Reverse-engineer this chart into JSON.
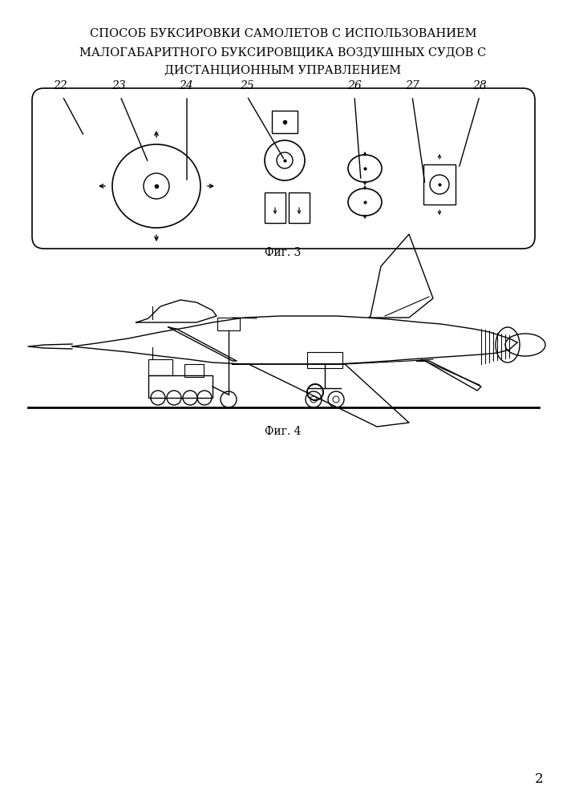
{
  "title_line1": "СПОСОБ БУКСИРОВКИ САМОЛЕТОВ С ИСПОЛЬЗОВАНИЕМ",
  "title_line2": "МАЛОГАБАРИТНОГО БУКСИРОВЩИКА ВОЗДУШНЫХ СУДОВ С",
  "title_line3": "ДИСТАНЦИОННЫМ УПРАВЛЕНИЕМ",
  "fig3_caption": "Фиг. 3",
  "fig4_caption": "Фиг. 4",
  "page_number": "2",
  "labels": [
    "22",
    "23",
    "24",
    "25",
    "26",
    "27",
    "28"
  ],
  "bg_color": "#ffffff",
  "line_color": "#000000"
}
